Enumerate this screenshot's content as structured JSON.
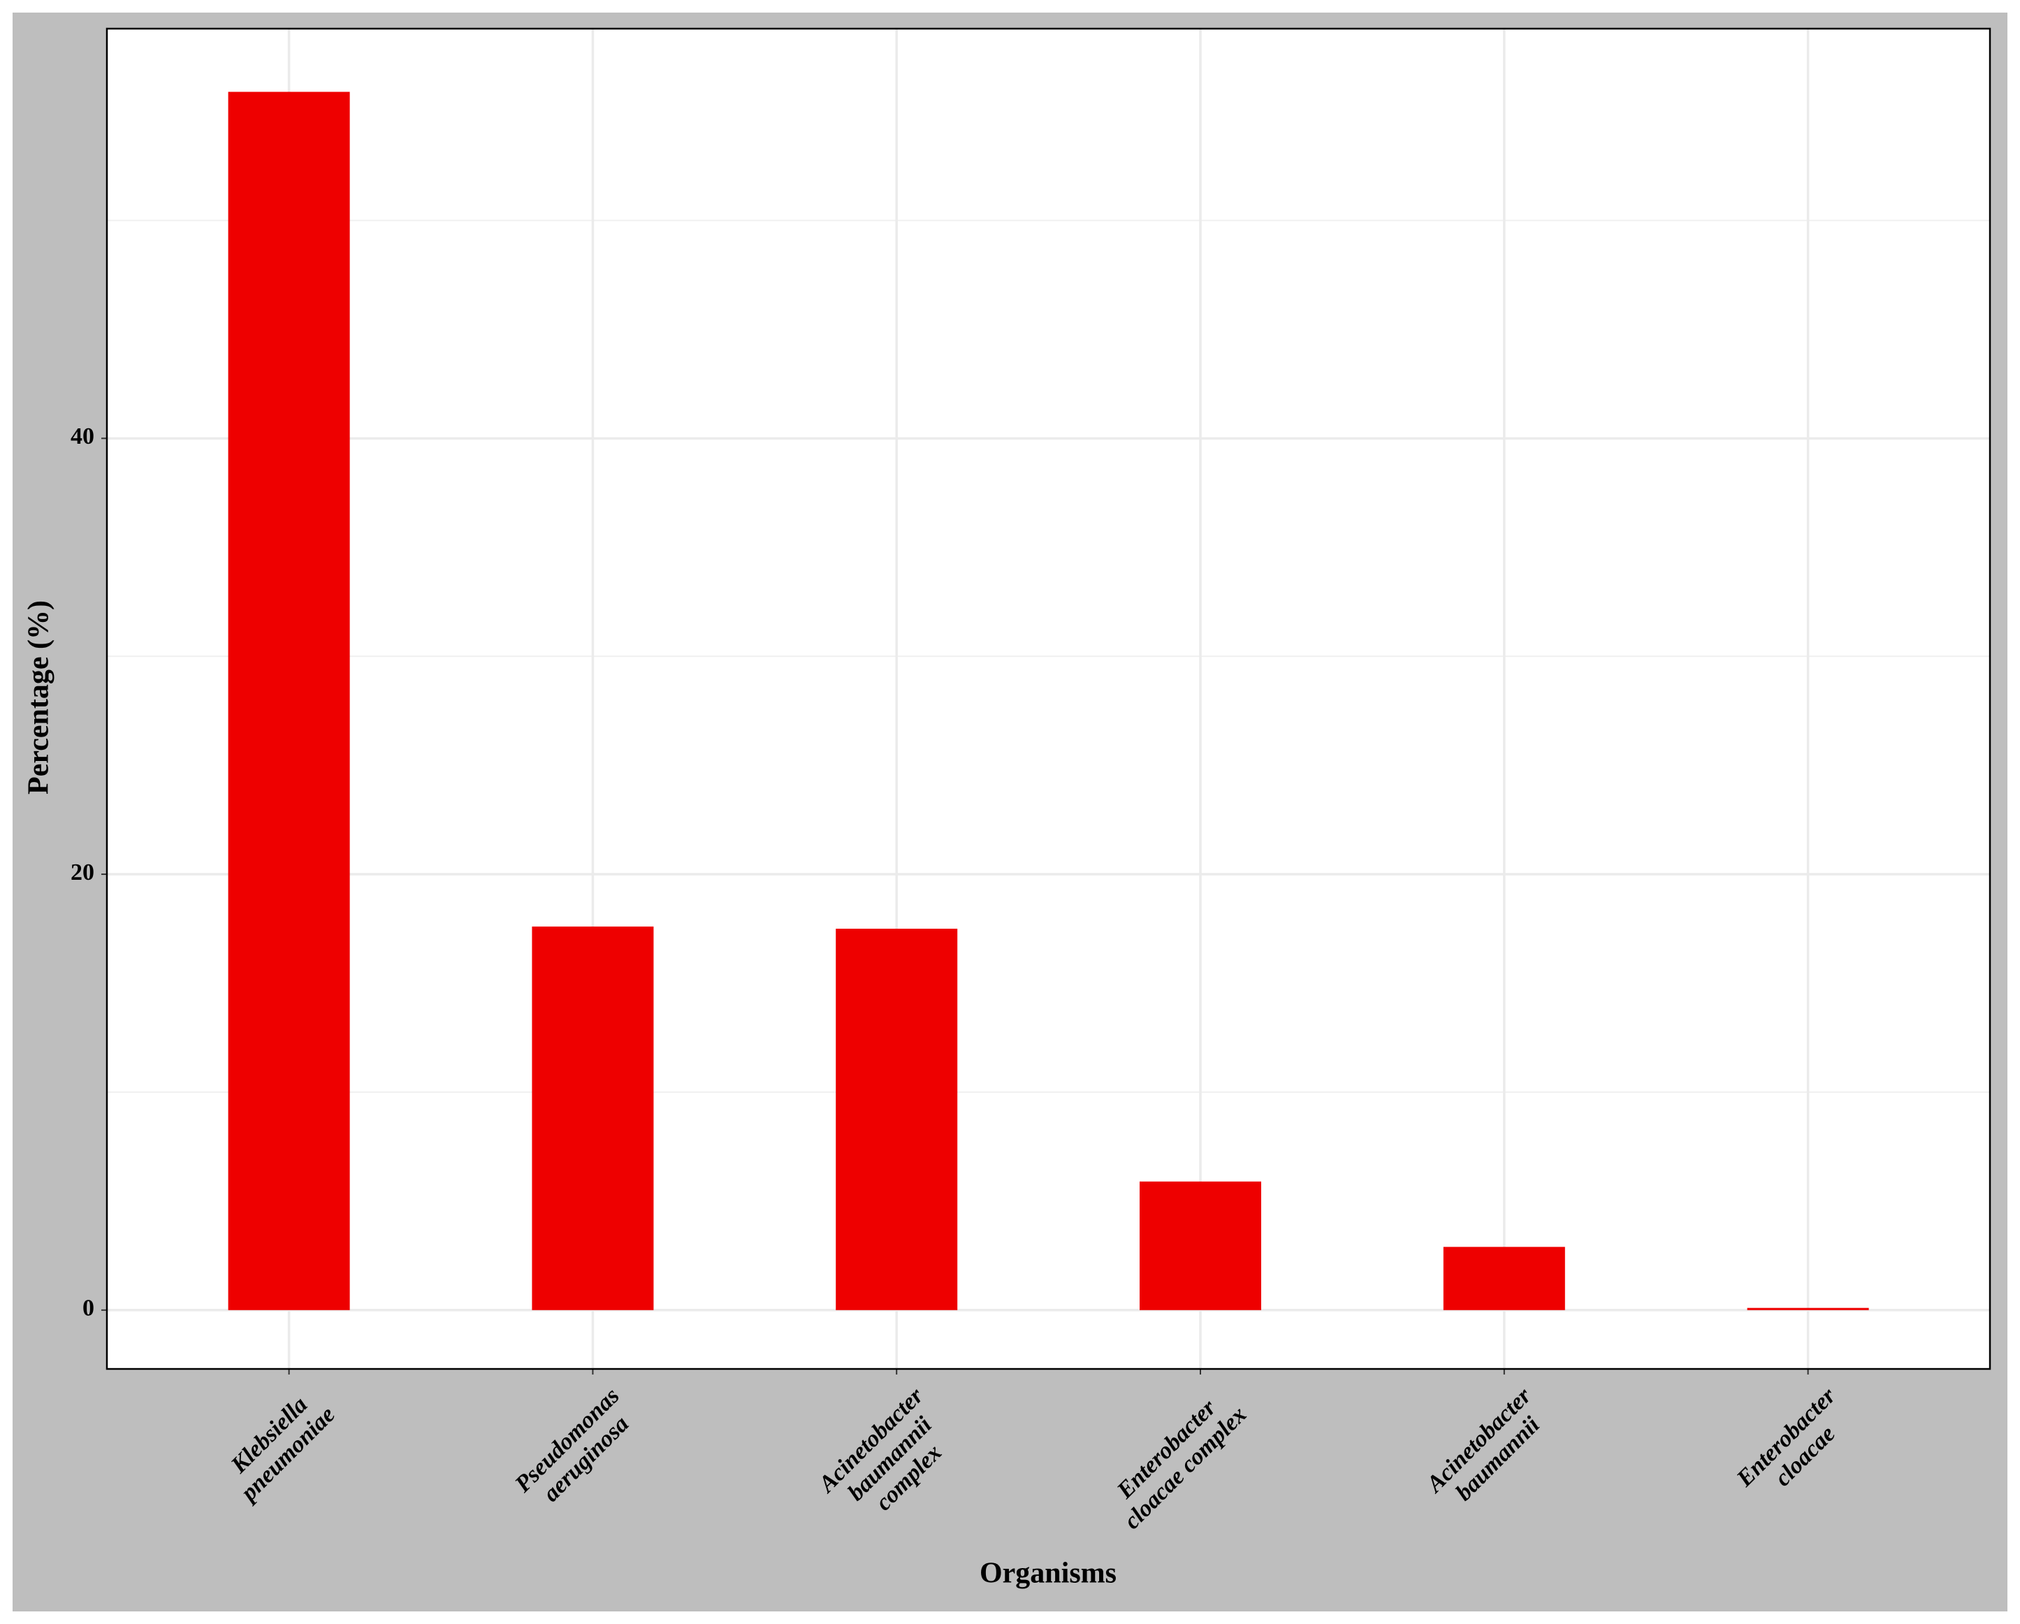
{
  "chart_data": {
    "type": "bar",
    "categories": [
      "Klebsiella\npneumoniae",
      "Pseudomonas\naeruginosa",
      "Acinetobacter\nbaumannii\ncomplex",
      "Enterobacter\ncloacae complex",
      "Acinetobacter\nbaumannii",
      "Enterobacter\ncloacae"
    ],
    "values": [
      55.9,
      17.6,
      17.5,
      5.9,
      2.9,
      0.1
    ],
    "color": "#ee0000",
    "x_label": "Organisms",
    "y_label": "Percentage (%)",
    "ylim": [
      -2.7,
      58.8
    ],
    "yticks": [
      0,
      20,
      40
    ],
    "minor_yticks": [
      10,
      30,
      50
    ],
    "grid": true
  }
}
